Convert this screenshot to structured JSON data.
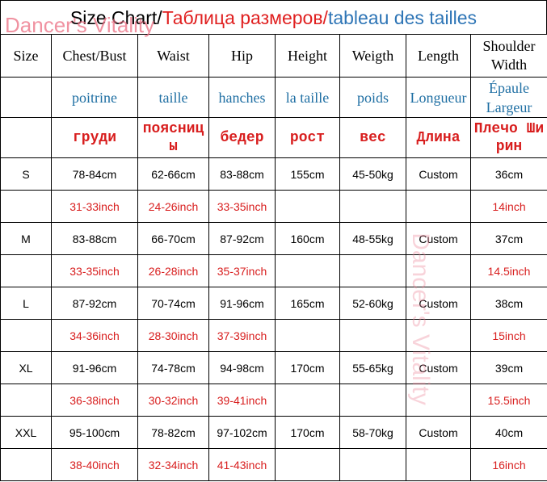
{
  "watermarks": {
    "corner": "Dancer's Vitality",
    "side": "Dancer's Vitality"
  },
  "title": {
    "english": "Size Chart/",
    "russian": "Таблица размеров/",
    "french": "tableau des tailles"
  },
  "headers": {
    "english": [
      "Size",
      "Chest/Bust",
      "Waist",
      "Hip",
      "Height",
      "Weigth",
      "Length",
      "Shoulder Width"
    ],
    "french": [
      "poitrine",
      "taille",
      "hanches",
      "la taille",
      "poids",
      "Longueur",
      "Épaule Largeur"
    ],
    "russian": [
      "груди",
      "поясницы",
      "бедер",
      "рост",
      "вес",
      "Длина",
      "Плечо Ширин"
    ]
  },
  "sizes": [
    {
      "cm": [
        "S",
        "78-84cm",
        "62-66cm",
        "83-88cm",
        "155cm",
        "45-50kg",
        "Custom",
        "36cm"
      ],
      "inch": [
        "31-33inch",
        "24-26inch",
        "33-35inch",
        "14inch"
      ]
    },
    {
      "cm": [
        "M",
        "83-88cm",
        "66-70cm",
        "87-92cm",
        "160cm",
        "48-55kg",
        "Custom",
        "37cm"
      ],
      "inch": [
        "33-35inch",
        "26-28inch",
        "35-37inch",
        "14.5inch"
      ]
    },
    {
      "cm": [
        "L",
        "87-92cm",
        "70-74cm",
        "91-96cm",
        "165cm",
        "52-60kg",
        "Custom",
        "38cm"
      ],
      "inch": [
        "34-36inch",
        "28-30inch",
        "37-39inch",
        "15inch"
      ]
    },
    {
      "cm": [
        "XL",
        "91-96cm",
        "74-78cm",
        "94-98cm",
        "170cm",
        "55-65kg",
        "Custom",
        "39cm"
      ],
      "inch": [
        "36-38inch",
        "30-32inch",
        "39-41inch",
        "15.5inch"
      ]
    },
    {
      "cm": [
        "XXL",
        "95-100cm",
        "78-82cm",
        "97-102cm",
        "170cm",
        "58-70kg",
        "Custom",
        "40cm"
      ],
      "inch": [
        "38-40inch",
        "32-34inch",
        "41-43inch",
        "16inch"
      ]
    }
  ]
}
